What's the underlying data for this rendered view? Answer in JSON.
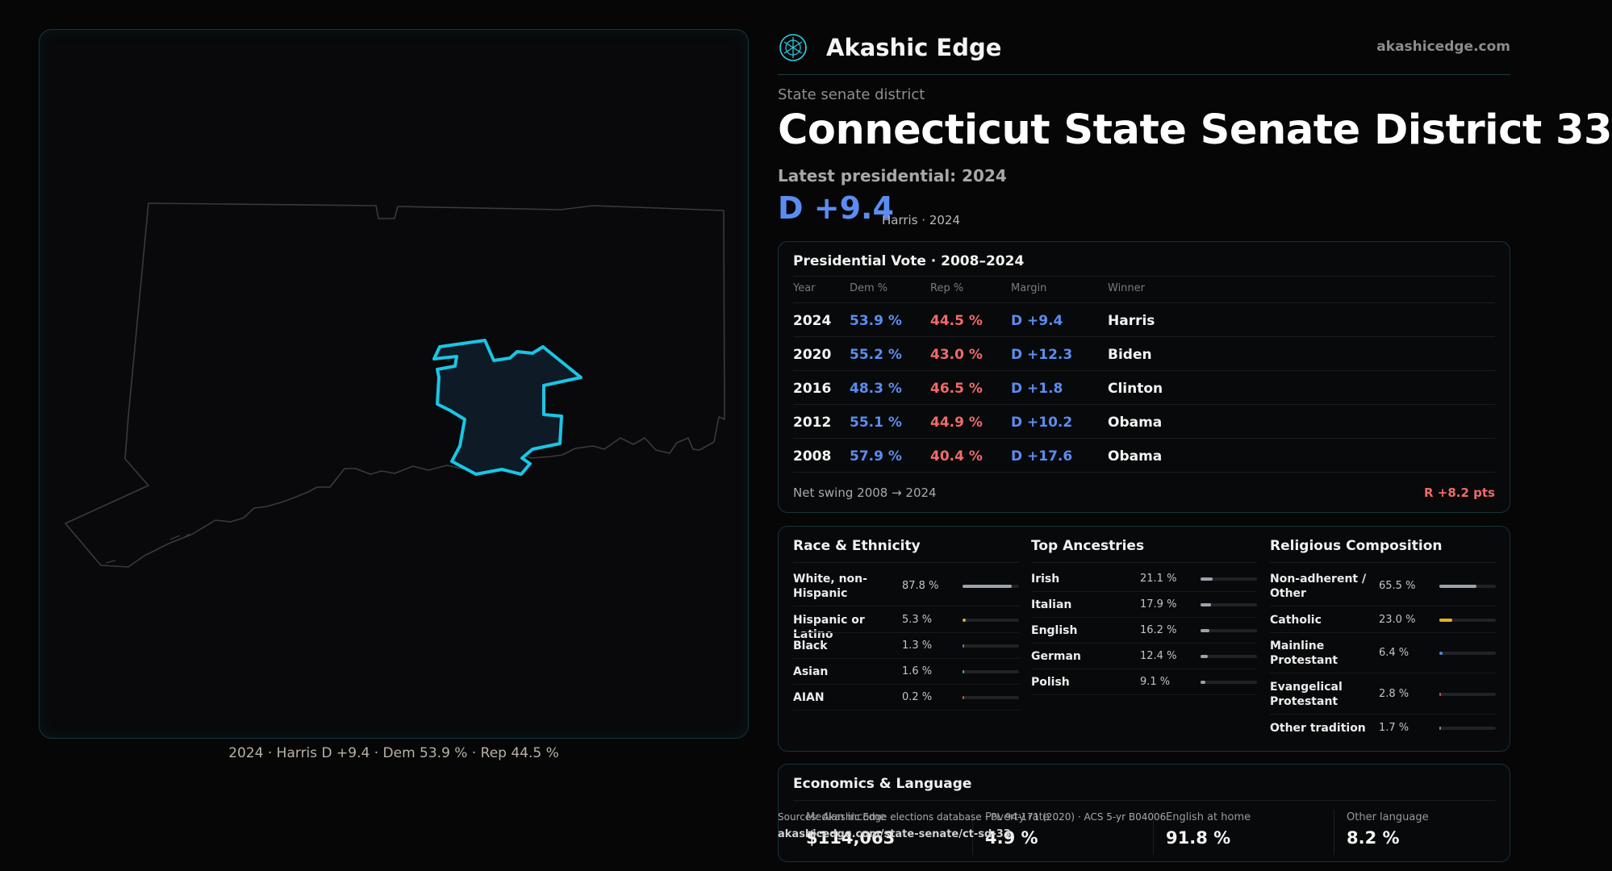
{
  "brand": {
    "name": "Akashic Edge",
    "url": "akashicedge.com",
    "logo_icon": "akashic-edge-logo-icon",
    "accent": "#2ad3ea"
  },
  "header": {
    "kicker": "State senate district",
    "title": "Connecticut State Senate District 33",
    "latest_label": "Latest presidential: 2024",
    "margin": "D +9.4",
    "margin_sub": "Harris · 2024"
  },
  "map": {
    "caption": "2024 · Harris D +9.4 · Dem 53.9 % · Rep 44.5 %",
    "highlight_color": "#19c6e6"
  },
  "presidential": {
    "title": "Presidential Vote · 2008–2024",
    "headers": {
      "year": "Year",
      "dem": "Dem %",
      "rep": "Rep %",
      "margin": "Margin",
      "winner": "Winner"
    },
    "rows": [
      {
        "year": "2024",
        "dem": "53.9 %",
        "rep": "44.5 %",
        "margin": "D +9.4",
        "winner": "Harris"
      },
      {
        "year": "2020",
        "dem": "55.2 %",
        "rep": "43.0 %",
        "margin": "D +12.3",
        "winner": "Biden"
      },
      {
        "year": "2016",
        "dem": "48.3 %",
        "rep": "46.5 %",
        "margin": "D +1.8",
        "winner": "Clinton"
      },
      {
        "year": "2012",
        "dem": "55.1 %",
        "rep": "44.9 %",
        "margin": "D +10.2",
        "winner": "Obama"
      },
      {
        "year": "2008",
        "dem": "57.9 %",
        "rep": "40.4 %",
        "margin": "D +17.6",
        "winner": "Obama"
      }
    ],
    "net_swing_label": "Net swing 2008 → 2024",
    "net_swing_value": "R +8.2 pts"
  },
  "race": {
    "title": "Race & Ethnicity",
    "items": [
      {
        "label": "White, non-Hispanic",
        "value": "87.8 %",
        "fraction": 0.878,
        "color": "#9aa3ad"
      },
      {
        "label": "Hispanic or Latino",
        "value": "5.3 %",
        "fraction": 0.053,
        "color": "#e3a62b"
      },
      {
        "label": "Black",
        "value": "1.3 %",
        "fraction": 0.013,
        "color": "#4f7fd6"
      },
      {
        "label": "Asian",
        "value": "1.6 %",
        "fraction": 0.016,
        "color": "#3fb7a0"
      },
      {
        "label": "AIAN",
        "value": "0.2 %",
        "fraction": 0.002,
        "color": "#c4572f"
      }
    ]
  },
  "ancestry": {
    "title": "Top Ancestries",
    "items": [
      {
        "label": "Irish",
        "value": "21.1 %",
        "fraction": 0.211,
        "color": "#9aa3ad"
      },
      {
        "label": "Italian",
        "value": "17.9 %",
        "fraction": 0.179,
        "color": "#9aa3ad"
      },
      {
        "label": "English",
        "value": "16.2 %",
        "fraction": 0.162,
        "color": "#9aa3ad"
      },
      {
        "label": "German",
        "value": "12.4 %",
        "fraction": 0.124,
        "color": "#9aa3ad"
      },
      {
        "label": "Polish",
        "value": "9.1 %",
        "fraction": 0.091,
        "color": "#9aa3ad"
      }
    ]
  },
  "religion": {
    "title": "Religious Composition",
    "items": [
      {
        "label": "Non-adherent / Other",
        "value": "65.5 %",
        "fraction": 0.655,
        "color": "#9aa3ad"
      },
      {
        "label": "Catholic",
        "value": "23.0 %",
        "fraction": 0.23,
        "color": "#e3b02b"
      },
      {
        "label": "Mainline Protestant",
        "value": "6.4 %",
        "fraction": 0.064,
        "color": "#4f86e0"
      },
      {
        "label": "Evangelical Protestant",
        "value": "2.8 %",
        "fraction": 0.028,
        "color": "#d84f4f"
      },
      {
        "label": "Other tradition",
        "value": "1.7 %",
        "fraction": 0.017,
        "color": "#8a8a8a"
      }
    ]
  },
  "economics": {
    "title": "Economics & Language",
    "stats": [
      {
        "label": "Median income",
        "value": "$114,063"
      },
      {
        "label": "Poverty rate",
        "value": "4.9 %"
      },
      {
        "label": "English at home",
        "value": "91.8 %"
      },
      {
        "label": "Other language",
        "value": "8.2 %"
      }
    ]
  },
  "footer": {
    "sources": "Sources: Akashic Edge elections database · PL 94-171 (2020) · ACS 5-yr B04006",
    "url": "akashicedge.com/state-senate/ct-sd-33"
  }
}
